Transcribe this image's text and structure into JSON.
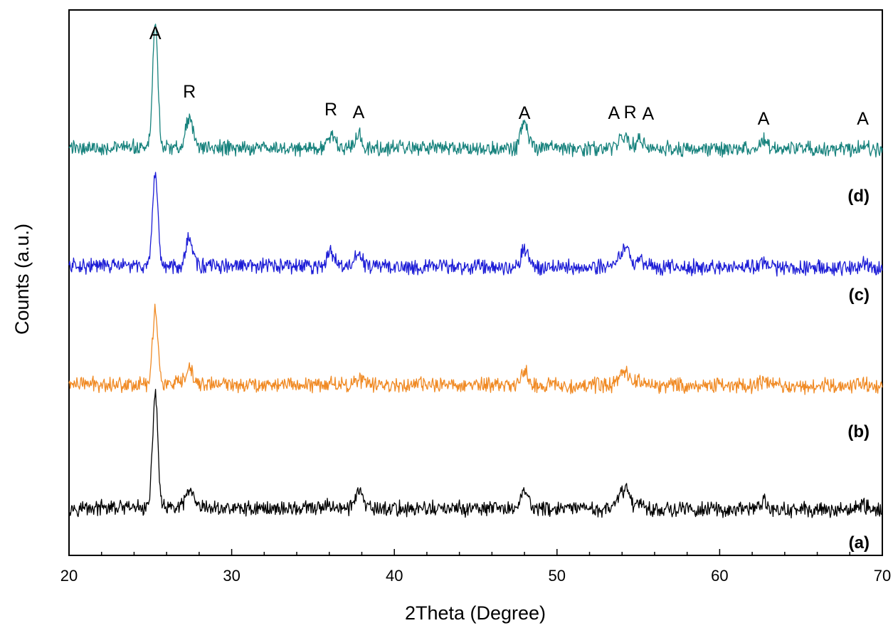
{
  "chart_data": {
    "type": "line",
    "title": "",
    "xlabel": "2Theta (Degree)",
    "ylabel": "Counts (a.u.)",
    "xlim": [
      20,
      70
    ],
    "x_ticks": [
      "20",
      "30",
      "40",
      "50",
      "60",
      "70"
    ],
    "y_ticks": [],
    "grid": false,
    "peak_positions_2theta": [
      25.3,
      27.4,
      36.1,
      37.8,
      48.0,
      53.9,
      54.3,
      55.1,
      62.7,
      68.8
    ],
    "phase_labels": [
      {
        "text": "A",
        "x": 25.3
      },
      {
        "text": "R",
        "x": 27.4
      },
      {
        "text": "R",
        "x": 36.1
      },
      {
        "text": "A",
        "x": 37.8
      },
      {
        "text": "A",
        "x": 48.0
      },
      {
        "text": "A",
        "x": 53.5
      },
      {
        "text": "R",
        "x": 54.5
      },
      {
        "text": "A",
        "x": 55.6
      },
      {
        "text": "A",
        "x": 62.7
      },
      {
        "text": "A",
        "x": 68.8
      }
    ],
    "series": [
      {
        "name": "(a)",
        "color": "#000000",
        "baseline": 0.0,
        "peak_heights": [
          0.58,
          0.09,
          0.02,
          0.09,
          0.1,
          0.06,
          0.09,
          0.04,
          0.04,
          0.03
        ]
      },
      {
        "name": "(b)",
        "color": "#f08a24",
        "baseline": 1.0,
        "peak_heights": [
          0.38,
          0.07,
          0.01,
          0.03,
          0.07,
          0.05,
          0.05,
          0.03,
          0.02,
          0.02
        ]
      },
      {
        "name": "(c)",
        "color": "#1d1dd6",
        "baseline": 2.0,
        "peak_heights": [
          0.44,
          0.14,
          0.07,
          0.06,
          0.09,
          0.06,
          0.07,
          0.05,
          0.03,
          0.03
        ]
      },
      {
        "name": "(d)",
        "color": "#17827d",
        "baseline": 3.0,
        "peak_heights": [
          0.63,
          0.15,
          0.07,
          0.07,
          0.13,
          0.05,
          0.04,
          0.05,
          0.04,
          0.03
        ]
      }
    ]
  }
}
